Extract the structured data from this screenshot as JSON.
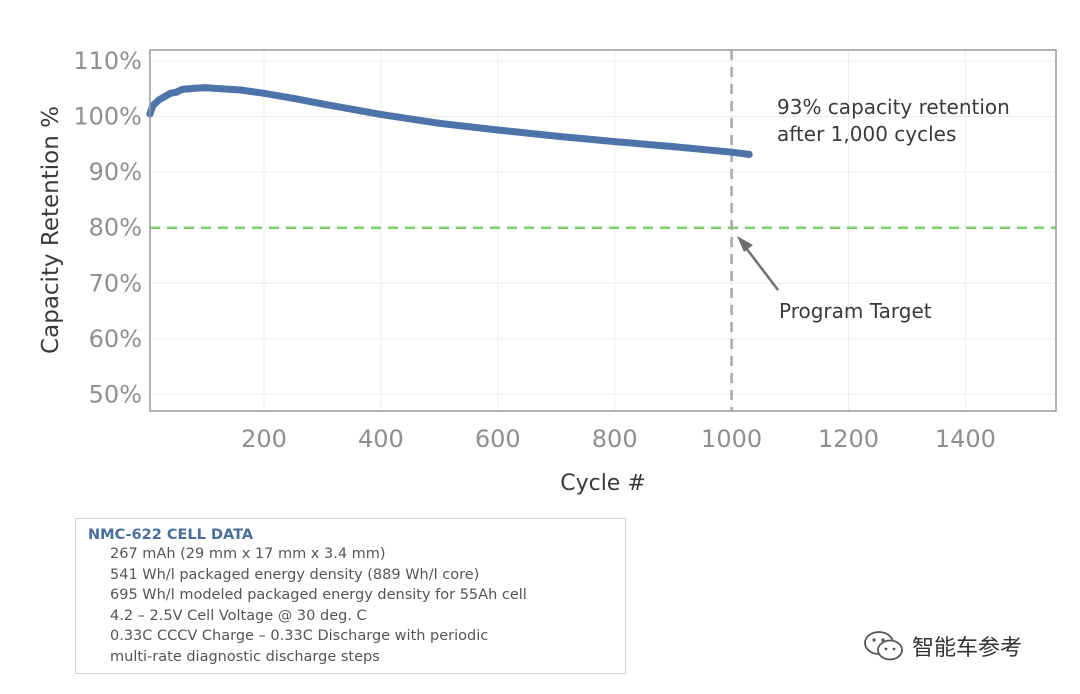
{
  "chart_data": {
    "type": "line",
    "title": "",
    "xlabel": "Cycle #",
    "ylabel": "Capacity Retention %",
    "xlim": [
      5,
      1555
    ],
    "ylim": [
      47,
      112
    ],
    "x_ticks": [
      200,
      400,
      600,
      800,
      1000,
      1200,
      1400
    ],
    "x_tick_labels": [
      "200",
      "400",
      "600",
      "800",
      "1000",
      "1200",
      "1400"
    ],
    "y_ticks": [
      50,
      60,
      70,
      80,
      90,
      100,
      110
    ],
    "y_tick_labels": [
      "50%",
      "60%",
      "70%",
      "80%",
      "90%",
      "100%",
      "110%"
    ],
    "grid": true,
    "series": [
      {
        "name": "Capacity Retention",
        "color": "#4d74a8",
        "x": [
          5,
          10,
          20,
          30,
          40,
          50,
          60,
          70,
          80,
          100,
          130,
          160,
          200,
          250,
          300,
          400,
          500,
          600,
          700,
          800,
          900,
          1000,
          1030
        ],
        "values": [
          100.5,
          102.0,
          103.0,
          103.6,
          104.2,
          104.4,
          104.9,
          105.0,
          105.1,
          105.2,
          105.0,
          104.8,
          104.2,
          103.3,
          102.3,
          100.4,
          98.8,
          97.6,
          96.5,
          95.5,
          94.6,
          93.6,
          93.2
        ]
      }
    ],
    "reference_lines": [
      {
        "name": "Program Target",
        "axis": "y",
        "value": 80,
        "color": "#7dd36b",
        "style": "dashed"
      },
      {
        "name": "1,000 cycles",
        "axis": "x",
        "value": 1000,
        "color": "#a8a8a8",
        "style": "dashed"
      }
    ],
    "annotations": {
      "retention_line1": "93% capacity retention",
      "retention_line2": "after 1,000 cycles",
      "target": "Program Target"
    }
  },
  "cell_data": {
    "title": "NMC-622 CELL DATA",
    "lines": [
      "267 mAh (29 mm x 17 mm x 3.4 mm)",
      "541 Wh/l packaged energy density (889 Wh/l core)",
      "695 Wh/l modeled packaged energy density for 55Ah cell",
      "4.2 – 2.5V Cell Voltage @ 30 deg. C",
      "0.33C CCCV Charge – 0.33C Discharge  with periodic",
      "multi-rate diagnostic discharge steps"
    ]
  },
  "watermark": {
    "text": "智能车参考",
    "icon": "wechat-icon"
  }
}
